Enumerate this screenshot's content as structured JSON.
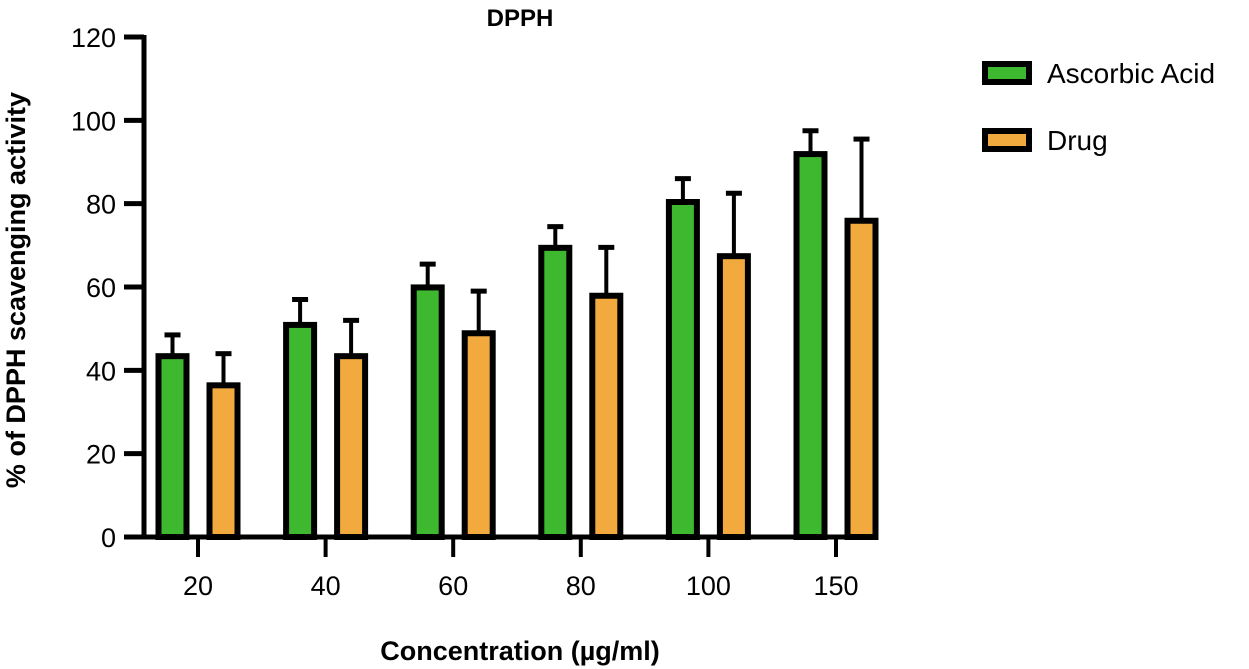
{
  "chart_data": {
    "type": "bar",
    "title": "DPPH",
    "xlabel": "Concentration (µg/ml)",
    "ylabel": "% of DPPH scavenging activity",
    "ylim": [
      0,
      120
    ],
    "yticks": [
      0,
      20,
      40,
      60,
      80,
      100,
      120
    ],
    "categories": [
      "20",
      "40",
      "60",
      "80",
      "100",
      "150"
    ],
    "grid": false,
    "legend_position": "top-right",
    "error_bars": "upper only",
    "series": [
      {
        "name": "Ascorbic Acid",
        "color": "#3eb82f",
        "values": [
          44,
          51.5,
          60.5,
          70,
          81,
          92.5
        ],
        "errors": [
          4.5,
          5.5,
          5,
          4.5,
          5,
          5
        ]
      },
      {
        "name": "Drug",
        "color": "#f2aa3e",
        "values": [
          37,
          44,
          49.5,
          58.5,
          68,
          76.5
        ],
        "errors": [
          7,
          8,
          9.5,
          11,
          14.5,
          19
        ]
      }
    ]
  }
}
